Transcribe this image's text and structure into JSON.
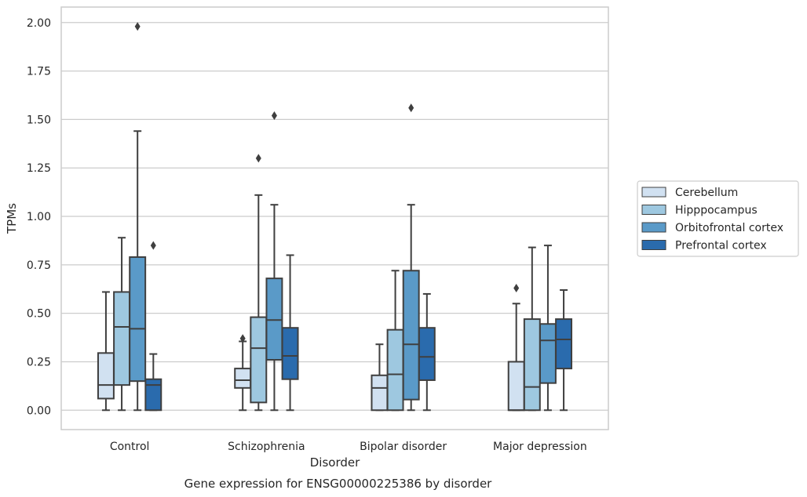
{
  "chart_data": {
    "type": "box",
    "caption": "Gene expression for ENSG00000225386 by disorder",
    "xlabel": "Disorder",
    "ylabel": "TPMs",
    "ylim": [
      -0.1,
      2.08
    ],
    "yticks": [
      "0.00",
      "0.25",
      "0.50",
      "0.75",
      "1.00",
      "1.25",
      "1.50",
      "1.75",
      "2.00"
    ],
    "grid": "horizontal",
    "legend_position": "right",
    "categories": [
      "Control",
      "Schizophrenia",
      "Bipolar disorder",
      "Major depression"
    ],
    "series": [
      {
        "name": "Cerebellum",
        "color": "#d1e1f1",
        "boxes": [
          {
            "q1": 0.06,
            "median": 0.13,
            "q3": 0.295,
            "whisker_low": 0.0,
            "whisker_high": 0.61,
            "outliers": []
          },
          {
            "q1": 0.115,
            "median": 0.155,
            "q3": 0.215,
            "whisker_low": 0.0,
            "whisker_high": 0.355,
            "outliers": [
              0.37
            ]
          },
          {
            "q1": 0.0,
            "median": 0.115,
            "q3": 0.18,
            "whisker_low": 0.0,
            "whisker_high": 0.34,
            "outliers": []
          },
          {
            "q1": 0.0,
            "median": 0.0,
            "q3": 0.25,
            "whisker_low": 0.0,
            "whisker_high": 0.55,
            "outliers": [
              0.63
            ]
          }
        ]
      },
      {
        "name": "Hipppocampus",
        "color": "#9ec8e0",
        "boxes": [
          {
            "q1": 0.13,
            "median": 0.43,
            "q3": 0.61,
            "whisker_low": 0.0,
            "whisker_high": 0.89,
            "outliers": []
          },
          {
            "q1": 0.04,
            "median": 0.32,
            "q3": 0.48,
            "whisker_low": 0.0,
            "whisker_high": 1.11,
            "outliers": [
              1.3
            ]
          },
          {
            "q1": 0.0,
            "median": 0.185,
            "q3": 0.415,
            "whisker_low": 0.0,
            "whisker_high": 0.72,
            "outliers": []
          },
          {
            "q1": 0.0,
            "median": 0.12,
            "q3": 0.47,
            "whisker_low": 0.0,
            "whisker_high": 0.84,
            "outliers": []
          }
        ]
      },
      {
        "name": "Orbitofrontal cortex",
        "color": "#5a9ac8",
        "boxes": [
          {
            "q1": 0.15,
            "median": 0.42,
            "q3": 0.79,
            "whisker_low": 0.0,
            "whisker_high": 1.44,
            "outliers": [
              1.98
            ]
          },
          {
            "q1": 0.26,
            "median": 0.465,
            "q3": 0.68,
            "whisker_low": 0.0,
            "whisker_high": 1.06,
            "outliers": [
              1.52
            ]
          },
          {
            "q1": 0.055,
            "median": 0.34,
            "q3": 0.72,
            "whisker_low": 0.0,
            "whisker_high": 1.06,
            "outliers": [
              1.56
            ]
          },
          {
            "q1": 0.14,
            "median": 0.36,
            "q3": 0.445,
            "whisker_low": 0.0,
            "whisker_high": 0.85,
            "outliers": []
          }
        ]
      },
      {
        "name": "Prefrontal cortex",
        "color": "#2a6bad",
        "boxes": [
          {
            "q1": 0.0,
            "median": 0.13,
            "q3": 0.16,
            "whisker_low": 0.0,
            "whisker_high": 0.29,
            "outliers": [
              0.85
            ]
          },
          {
            "q1": 0.16,
            "median": 0.28,
            "q3": 0.425,
            "whisker_low": 0.0,
            "whisker_high": 0.8,
            "outliers": []
          },
          {
            "q1": 0.155,
            "median": 0.275,
            "q3": 0.425,
            "whisker_low": 0.0,
            "whisker_high": 0.6,
            "outliers": []
          },
          {
            "q1": 0.215,
            "median": 0.365,
            "q3": 0.47,
            "whisker_low": 0.0,
            "whisker_high": 0.62,
            "outliers": []
          }
        ]
      }
    ]
  }
}
